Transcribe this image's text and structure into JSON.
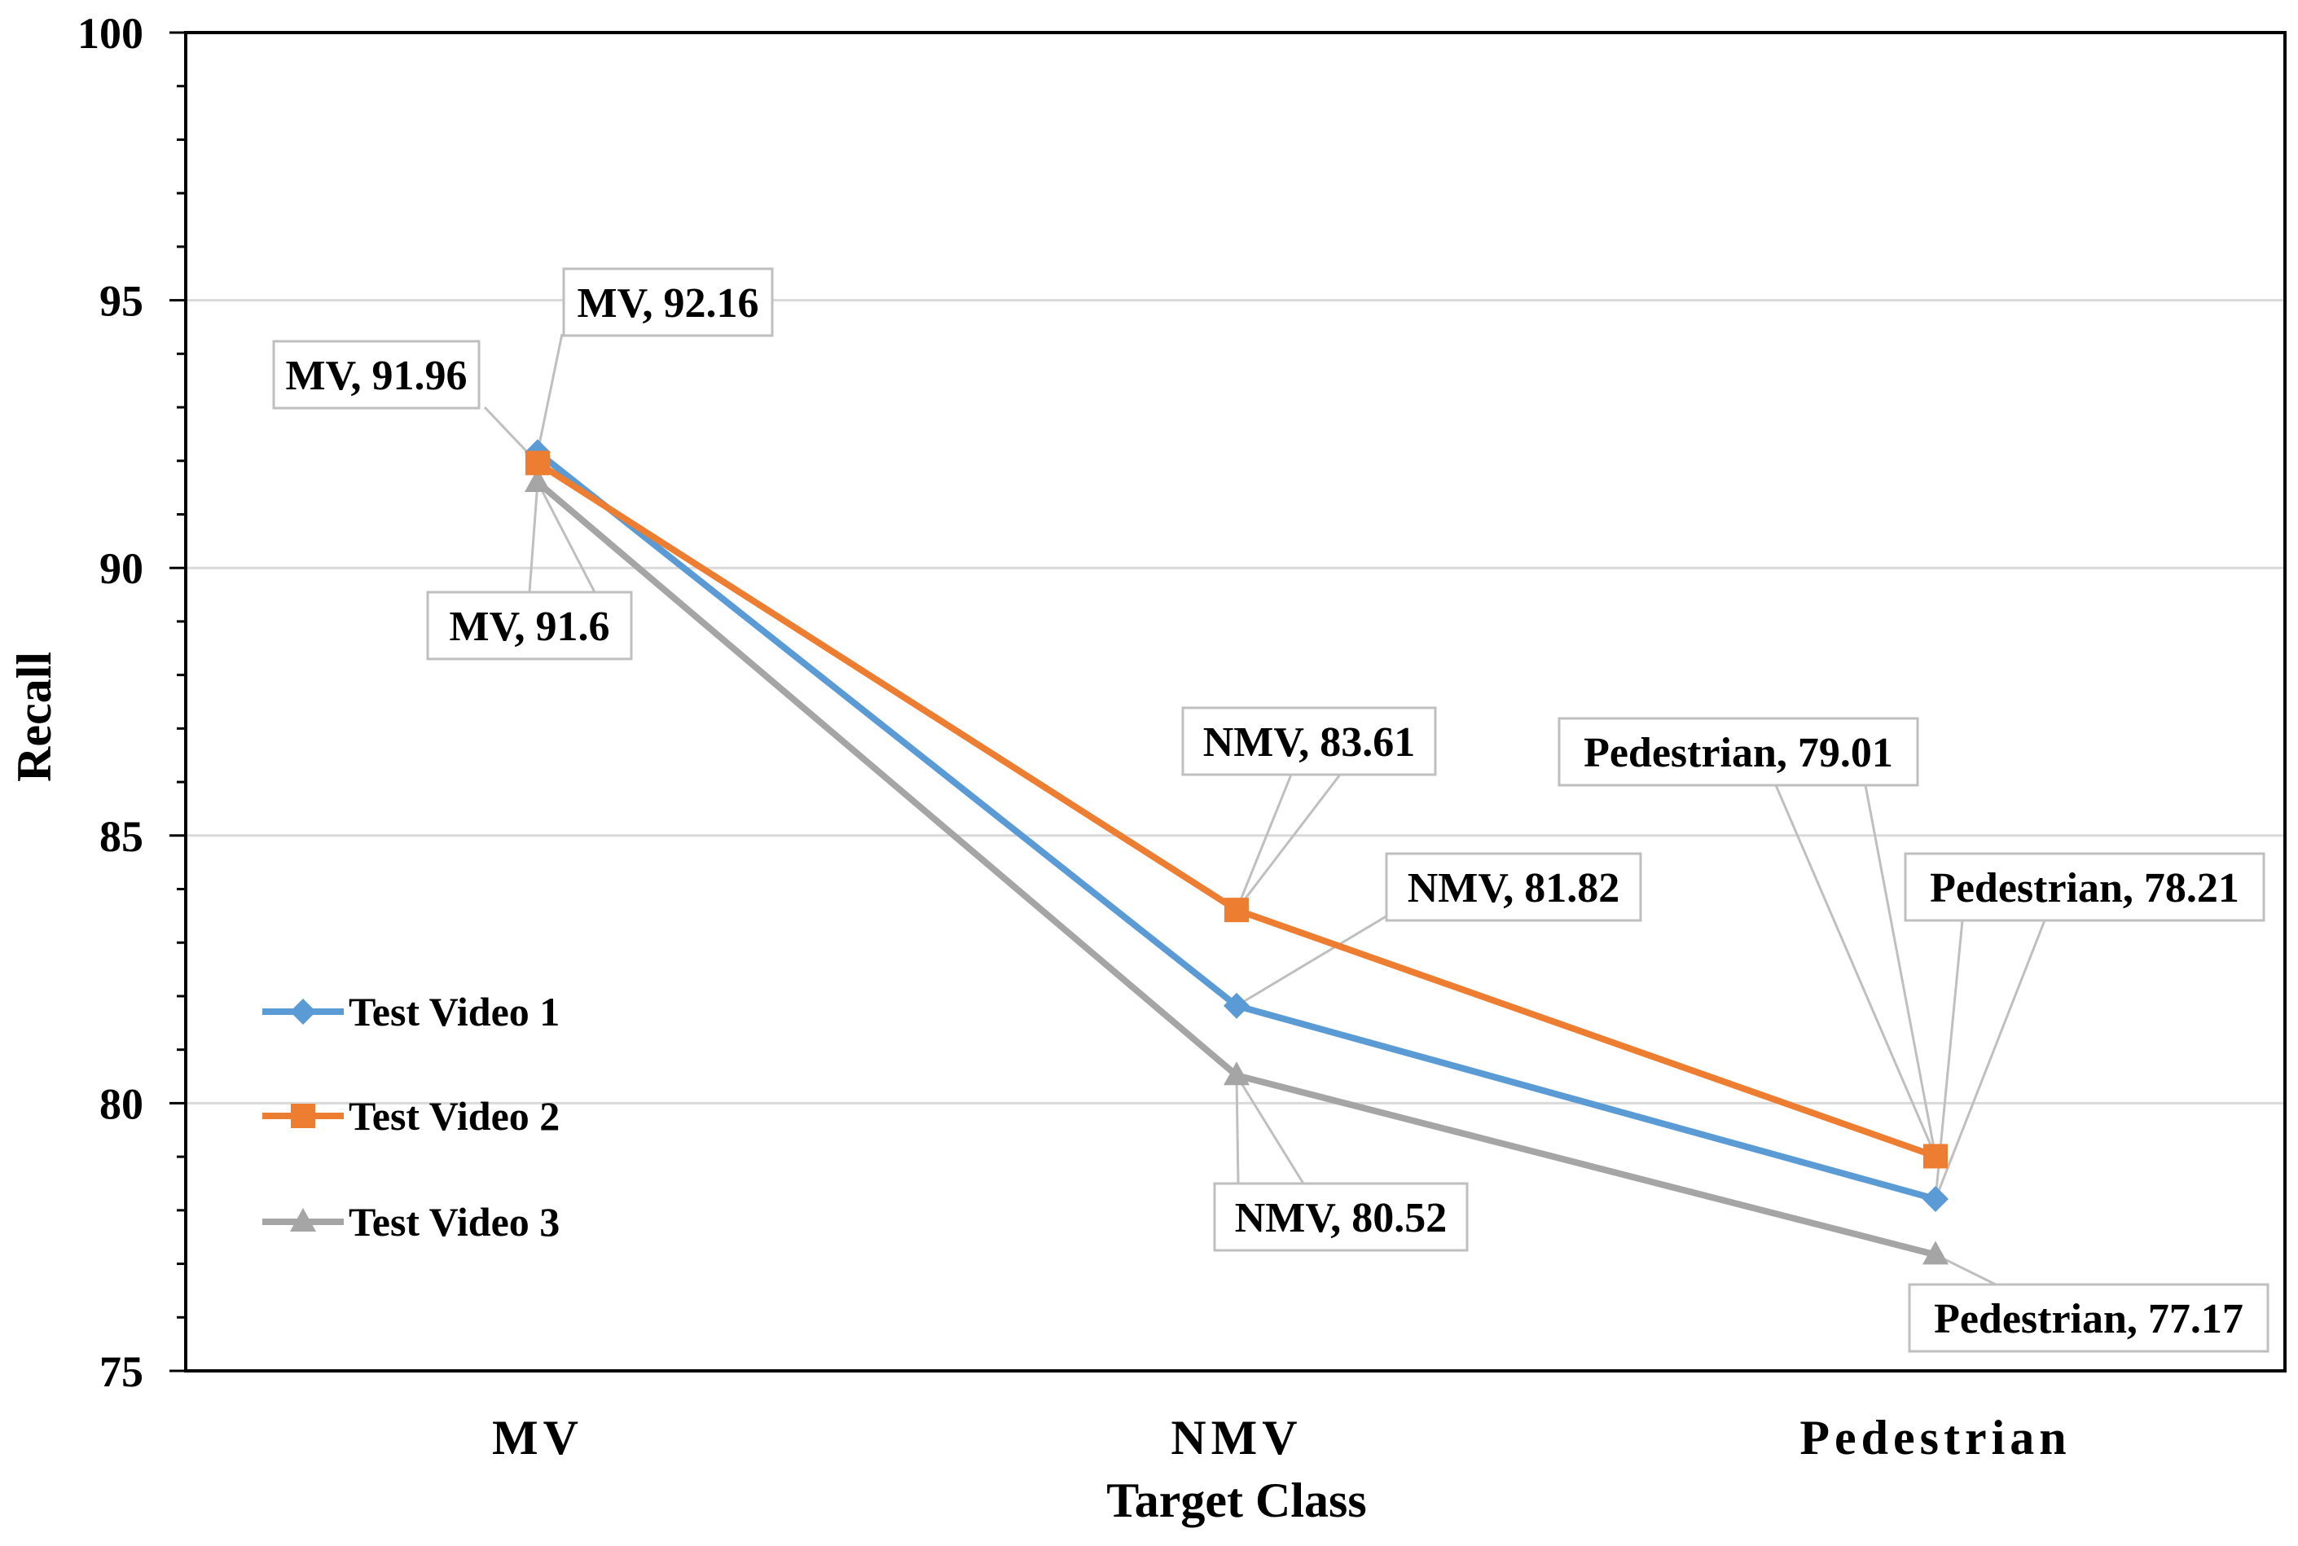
{
  "chart_data": {
    "type": "line",
    "title": "",
    "xlabel": "Target Class",
    "ylabel": "Recall",
    "categories": [
      "MV",
      "NMV",
      "Pedestrian"
    ],
    "ylim": [
      75,
      100
    ],
    "yticks": [
      75,
      80,
      85,
      90,
      95,
      100
    ],
    "grid": true,
    "legend_position": "left",
    "series": [
      {
        "name": "Test Video 1",
        "color": "#5B9BD5",
        "marker": "diamond",
        "values": [
          92.16,
          81.82,
          78.21
        ]
      },
      {
        "name": "Test Video 2",
        "color": "#ED7D31",
        "marker": "square",
        "values": [
          91.96,
          83.61,
          79.01
        ]
      },
      {
        "name": "Test Video 3",
        "color": "#A5A5A5",
        "marker": "triangle",
        "values": [
          91.6,
          80.52,
          77.17
        ]
      }
    ],
    "data_labels": [
      {
        "series": 0,
        "point": 0,
        "text": "MV, 92.16"
      },
      {
        "series": 1,
        "point": 0,
        "text": "MV, 91.96"
      },
      {
        "series": 2,
        "point": 0,
        "text": "MV, 91.6"
      },
      {
        "series": 1,
        "point": 1,
        "text": "NMV, 83.61"
      },
      {
        "series": 0,
        "point": 1,
        "text": "NMV, 81.82"
      },
      {
        "series": 2,
        "point": 1,
        "text": "NMV, 80.52"
      },
      {
        "series": 1,
        "point": 2,
        "text": "Pedestrian, 79.01"
      },
      {
        "series": 0,
        "point": 2,
        "text": "Pedestrian, 78.21"
      },
      {
        "series": 2,
        "point": 2,
        "text": "Pedestrian, 77.17"
      }
    ]
  }
}
